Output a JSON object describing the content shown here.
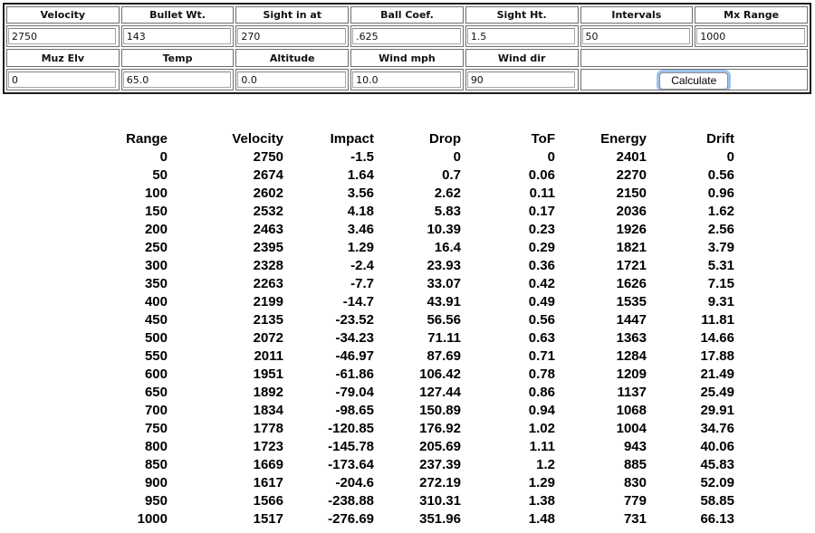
{
  "form": {
    "row1": [
      {
        "label": "Velocity",
        "value": "2750"
      },
      {
        "label": "Bullet Wt.",
        "value": "143"
      },
      {
        "label": "Sight in at",
        "value": "270"
      },
      {
        "label": "Ball Coef.",
        "value": ".625"
      },
      {
        "label": "Sight Ht.",
        "value": "1.5"
      },
      {
        "label": "Intervals",
        "value": "50"
      },
      {
        "label": "Mx Range",
        "value": "1000"
      }
    ],
    "row2": [
      {
        "label": "Muz Elv",
        "value": "0"
      },
      {
        "label": "Temp",
        "value": "65.0"
      },
      {
        "label": "Altitude",
        "value": "0.0"
      },
      {
        "label": "Wind mph",
        "value": "10.0"
      },
      {
        "label": "Wind dir",
        "value": "90"
      }
    ],
    "calculate_label": "Calculate"
  },
  "results": {
    "columns": [
      "Range",
      "Velocity",
      "Impact",
      "Drop",
      "ToF",
      "Energy",
      "Drift"
    ],
    "rows": [
      [
        "0",
        "2750",
        "-1.5",
        "0",
        "0",
        "2401",
        "0"
      ],
      [
        "50",
        "2674",
        "1.64",
        "0.7",
        "0.06",
        "2270",
        "0.56"
      ],
      [
        "100",
        "2602",
        "3.56",
        "2.62",
        "0.11",
        "2150",
        "0.96"
      ],
      [
        "150",
        "2532",
        "4.18",
        "5.83",
        "0.17",
        "2036",
        "1.62"
      ],
      [
        "200",
        "2463",
        "3.46",
        "10.39",
        "0.23",
        "1926",
        "2.56"
      ],
      [
        "250",
        "2395",
        "1.29",
        "16.4",
        "0.29",
        "1821",
        "3.79"
      ],
      [
        "300",
        "2328",
        "-2.4",
        "23.93",
        "0.36",
        "1721",
        "5.31"
      ],
      [
        "350",
        "2263",
        "-7.7",
        "33.07",
        "0.42",
        "1626",
        "7.15"
      ],
      [
        "400",
        "2199",
        "-14.7",
        "43.91",
        "0.49",
        "1535",
        "9.31"
      ],
      [
        "450",
        "2135",
        "-23.52",
        "56.56",
        "0.56",
        "1447",
        "11.81"
      ],
      [
        "500",
        "2072",
        "-34.23",
        "71.11",
        "0.63",
        "1363",
        "14.66"
      ],
      [
        "550",
        "2011",
        "-46.97",
        "87.69",
        "0.71",
        "1284",
        "17.88"
      ],
      [
        "600",
        "1951",
        "-61.86",
        "106.42",
        "0.78",
        "1209",
        "21.49"
      ],
      [
        "650",
        "1892",
        "-79.04",
        "127.44",
        "0.86",
        "1137",
        "25.49"
      ],
      [
        "700",
        "1834",
        "-98.65",
        "150.89",
        "0.94",
        "1068",
        "29.91"
      ],
      [
        "750",
        "1778",
        "-120.85",
        "176.92",
        "1.02",
        "1004",
        "34.76"
      ],
      [
        "800",
        "1723",
        "-145.78",
        "205.69",
        "1.11",
        "943",
        "40.06"
      ],
      [
        "850",
        "1669",
        "-173.64",
        "237.39",
        "1.2",
        "885",
        "45.83"
      ],
      [
        "900",
        "1617",
        "-204.6",
        "272.19",
        "1.29",
        "830",
        "52.09"
      ],
      [
        "950",
        "1566",
        "-238.88",
        "310.31",
        "1.38",
        "779",
        "58.85"
      ],
      [
        "1000",
        "1517",
        "-276.69",
        "351.96",
        "1.48",
        "731",
        "66.13"
      ]
    ]
  },
  "colors": {
    "focus_ring": "#9cc2e9",
    "outer_border": "#1c1c1c",
    "cell_border": "#6e6e6e"
  }
}
